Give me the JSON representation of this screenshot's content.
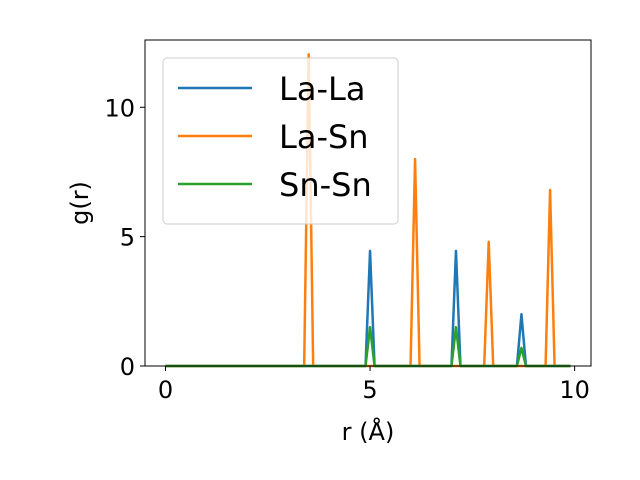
{
  "chart_data": {
    "type": "line",
    "title": "",
    "xlabel": "r (Å)",
    "ylabel": "g(r)",
    "xlim": [
      -0.5,
      10.4
    ],
    "ylim": [
      0,
      12.6
    ],
    "xticks": [
      0,
      5,
      10
    ],
    "yticks": [
      0,
      5,
      10
    ],
    "xtick_labels": [
      "0",
      "5",
      "10"
    ],
    "ytick_labels": [
      "0",
      "5",
      "10"
    ],
    "legend_position": "upper-left",
    "grid": false,
    "series": [
      {
        "name": "La-La",
        "color": "#1f77b4",
        "peaks": [
          {
            "r": 5.0,
            "height": 4.45
          },
          {
            "r": 7.1,
            "height": 4.45
          },
          {
            "r": 8.7,
            "height": 2.0
          }
        ],
        "r_max": 9.9
      },
      {
        "name": "La-Sn",
        "color": "#ff7f0e",
        "peaks": [
          {
            "r": 3.5,
            "height": 12.05
          },
          {
            "r": 6.1,
            "height": 8.0
          },
          {
            "r": 7.9,
            "height": 4.8
          },
          {
            "r": 9.4,
            "height": 6.8
          }
        ],
        "r_max": 9.9
      },
      {
        "name": "Sn-Sn",
        "color": "#2ca02c",
        "peaks": [
          {
            "r": 5.0,
            "height": 1.5
          },
          {
            "r": 7.1,
            "height": 1.5
          },
          {
            "r": 8.7,
            "height": 0.7
          }
        ],
        "r_max": 9.9
      }
    ]
  }
}
